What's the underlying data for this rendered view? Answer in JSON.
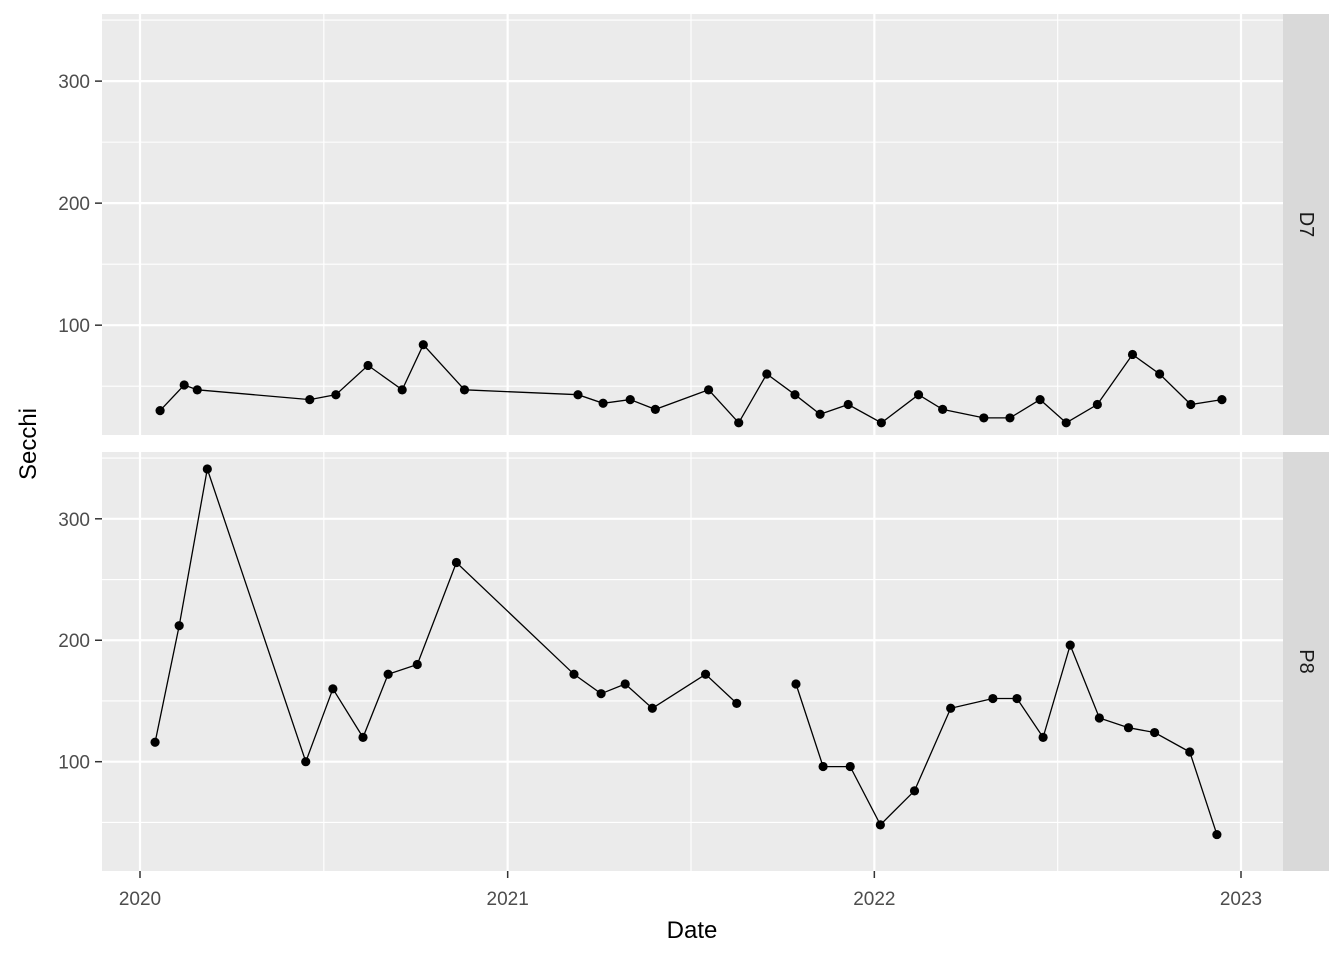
{
  "chart_data": {
    "type": "line",
    "xlabel": "Date",
    "ylabel": "Secchi",
    "x_ticks": [
      "2020",
      "2021",
      "2022",
      "2023"
    ],
    "y_ticks": [
      100,
      200,
      300
    ],
    "ylim": [
      10,
      355
    ],
    "grid": true,
    "facets": [
      {
        "label": "D7",
        "segments": [
          [
            {
              "x": "2020-01-21",
              "y": 30
            },
            {
              "x": "2020-02-14",
              "y": 51
            },
            {
              "x": "2020-02-27",
              "y": 47
            },
            {
              "x": "2020-06-18",
              "y": 39
            },
            {
              "x": "2020-07-14",
              "y": 43
            },
            {
              "x": "2020-08-15",
              "y": 67
            },
            {
              "x": "2020-09-18",
              "y": 47
            },
            {
              "x": "2020-10-09",
              "y": 84
            },
            {
              "x": "2020-11-19",
              "y": 47
            },
            {
              "x": "2021-03-12",
              "y": 43
            },
            {
              "x": "2021-04-06",
              "y": 36
            },
            {
              "x": "2021-05-03",
              "y": 39
            },
            {
              "x": "2021-05-28",
              "y": 31
            },
            {
              "x": "2021-07-20",
              "y": 47
            },
            {
              "x": "2021-08-19",
              "y": 20
            },
            {
              "x": "2021-09-16",
              "y": 60
            },
            {
              "x": "2021-10-14",
              "y": 43
            },
            {
              "x": "2021-11-08",
              "y": 27
            },
            {
              "x": "2021-12-06",
              "y": 35
            },
            {
              "x": "2022-01-08",
              "y": 20
            },
            {
              "x": "2022-02-14",
              "y": 43
            },
            {
              "x": "2022-03-10",
              "y": 31
            },
            {
              "x": "2022-04-20",
              "y": 24
            },
            {
              "x": "2022-05-16",
              "y": 24
            },
            {
              "x": "2022-06-15",
              "y": 39
            },
            {
              "x": "2022-07-11",
              "y": 20
            },
            {
              "x": "2022-08-11",
              "y": 35
            },
            {
              "x": "2022-09-15",
              "y": 76
            },
            {
              "x": "2022-10-12",
              "y": 60
            },
            {
              "x": "2022-11-12",
              "y": 35
            },
            {
              "x": "2022-12-13",
              "y": 39
            }
          ]
        ]
      },
      {
        "label": "P8",
        "segments": [
          [
            {
              "x": "2020-01-16",
              "y": 116
            },
            {
              "x": "2020-02-09",
              "y": 212
            },
            {
              "x": "2020-03-08",
              "y": 341
            },
            {
              "x": "2020-06-14",
              "y": 100
            },
            {
              "x": "2020-07-11",
              "y": 160
            },
            {
              "x": "2020-08-10",
              "y": 120
            },
            {
              "x": "2020-09-04",
              "y": 172
            },
            {
              "x": "2020-10-03",
              "y": 180
            },
            {
              "x": "2020-11-11",
              "y": 264
            },
            {
              "x": "2021-03-08",
              "y": 172
            },
            {
              "x": "2021-04-04",
              "y": 156
            },
            {
              "x": "2021-04-28",
              "y": 164
            },
            {
              "x": "2021-05-25",
              "y": 144
            },
            {
              "x": "2021-07-17",
              "y": 172
            },
            {
              "x": "2021-08-17",
              "y": 148
            }
          ],
          [
            {
              "x": "2021-10-15",
              "y": 164
            },
            {
              "x": "2021-11-11",
              "y": 96
            },
            {
              "x": "2021-12-08",
              "y": 96
            },
            {
              "x": "2022-01-07",
              "y": 48
            },
            {
              "x": "2022-02-10",
              "y": 76
            },
            {
              "x": "2022-03-18",
              "y": 144
            },
            {
              "x": "2022-04-29",
              "y": 152
            },
            {
              "x": "2022-05-23",
              "y": 152
            },
            {
              "x": "2022-06-18",
              "y": 120
            },
            {
              "x": "2022-07-15",
              "y": 196
            },
            {
              "x": "2022-08-13",
              "y": 136
            },
            {
              "x": "2022-09-11",
              "y": 128
            },
            {
              "x": "2022-10-07",
              "y": 124
            },
            {
              "x": "2022-11-11",
              "y": 108
            },
            {
              "x": "2022-12-08",
              "y": 40
            }
          ]
        ]
      }
    ]
  }
}
